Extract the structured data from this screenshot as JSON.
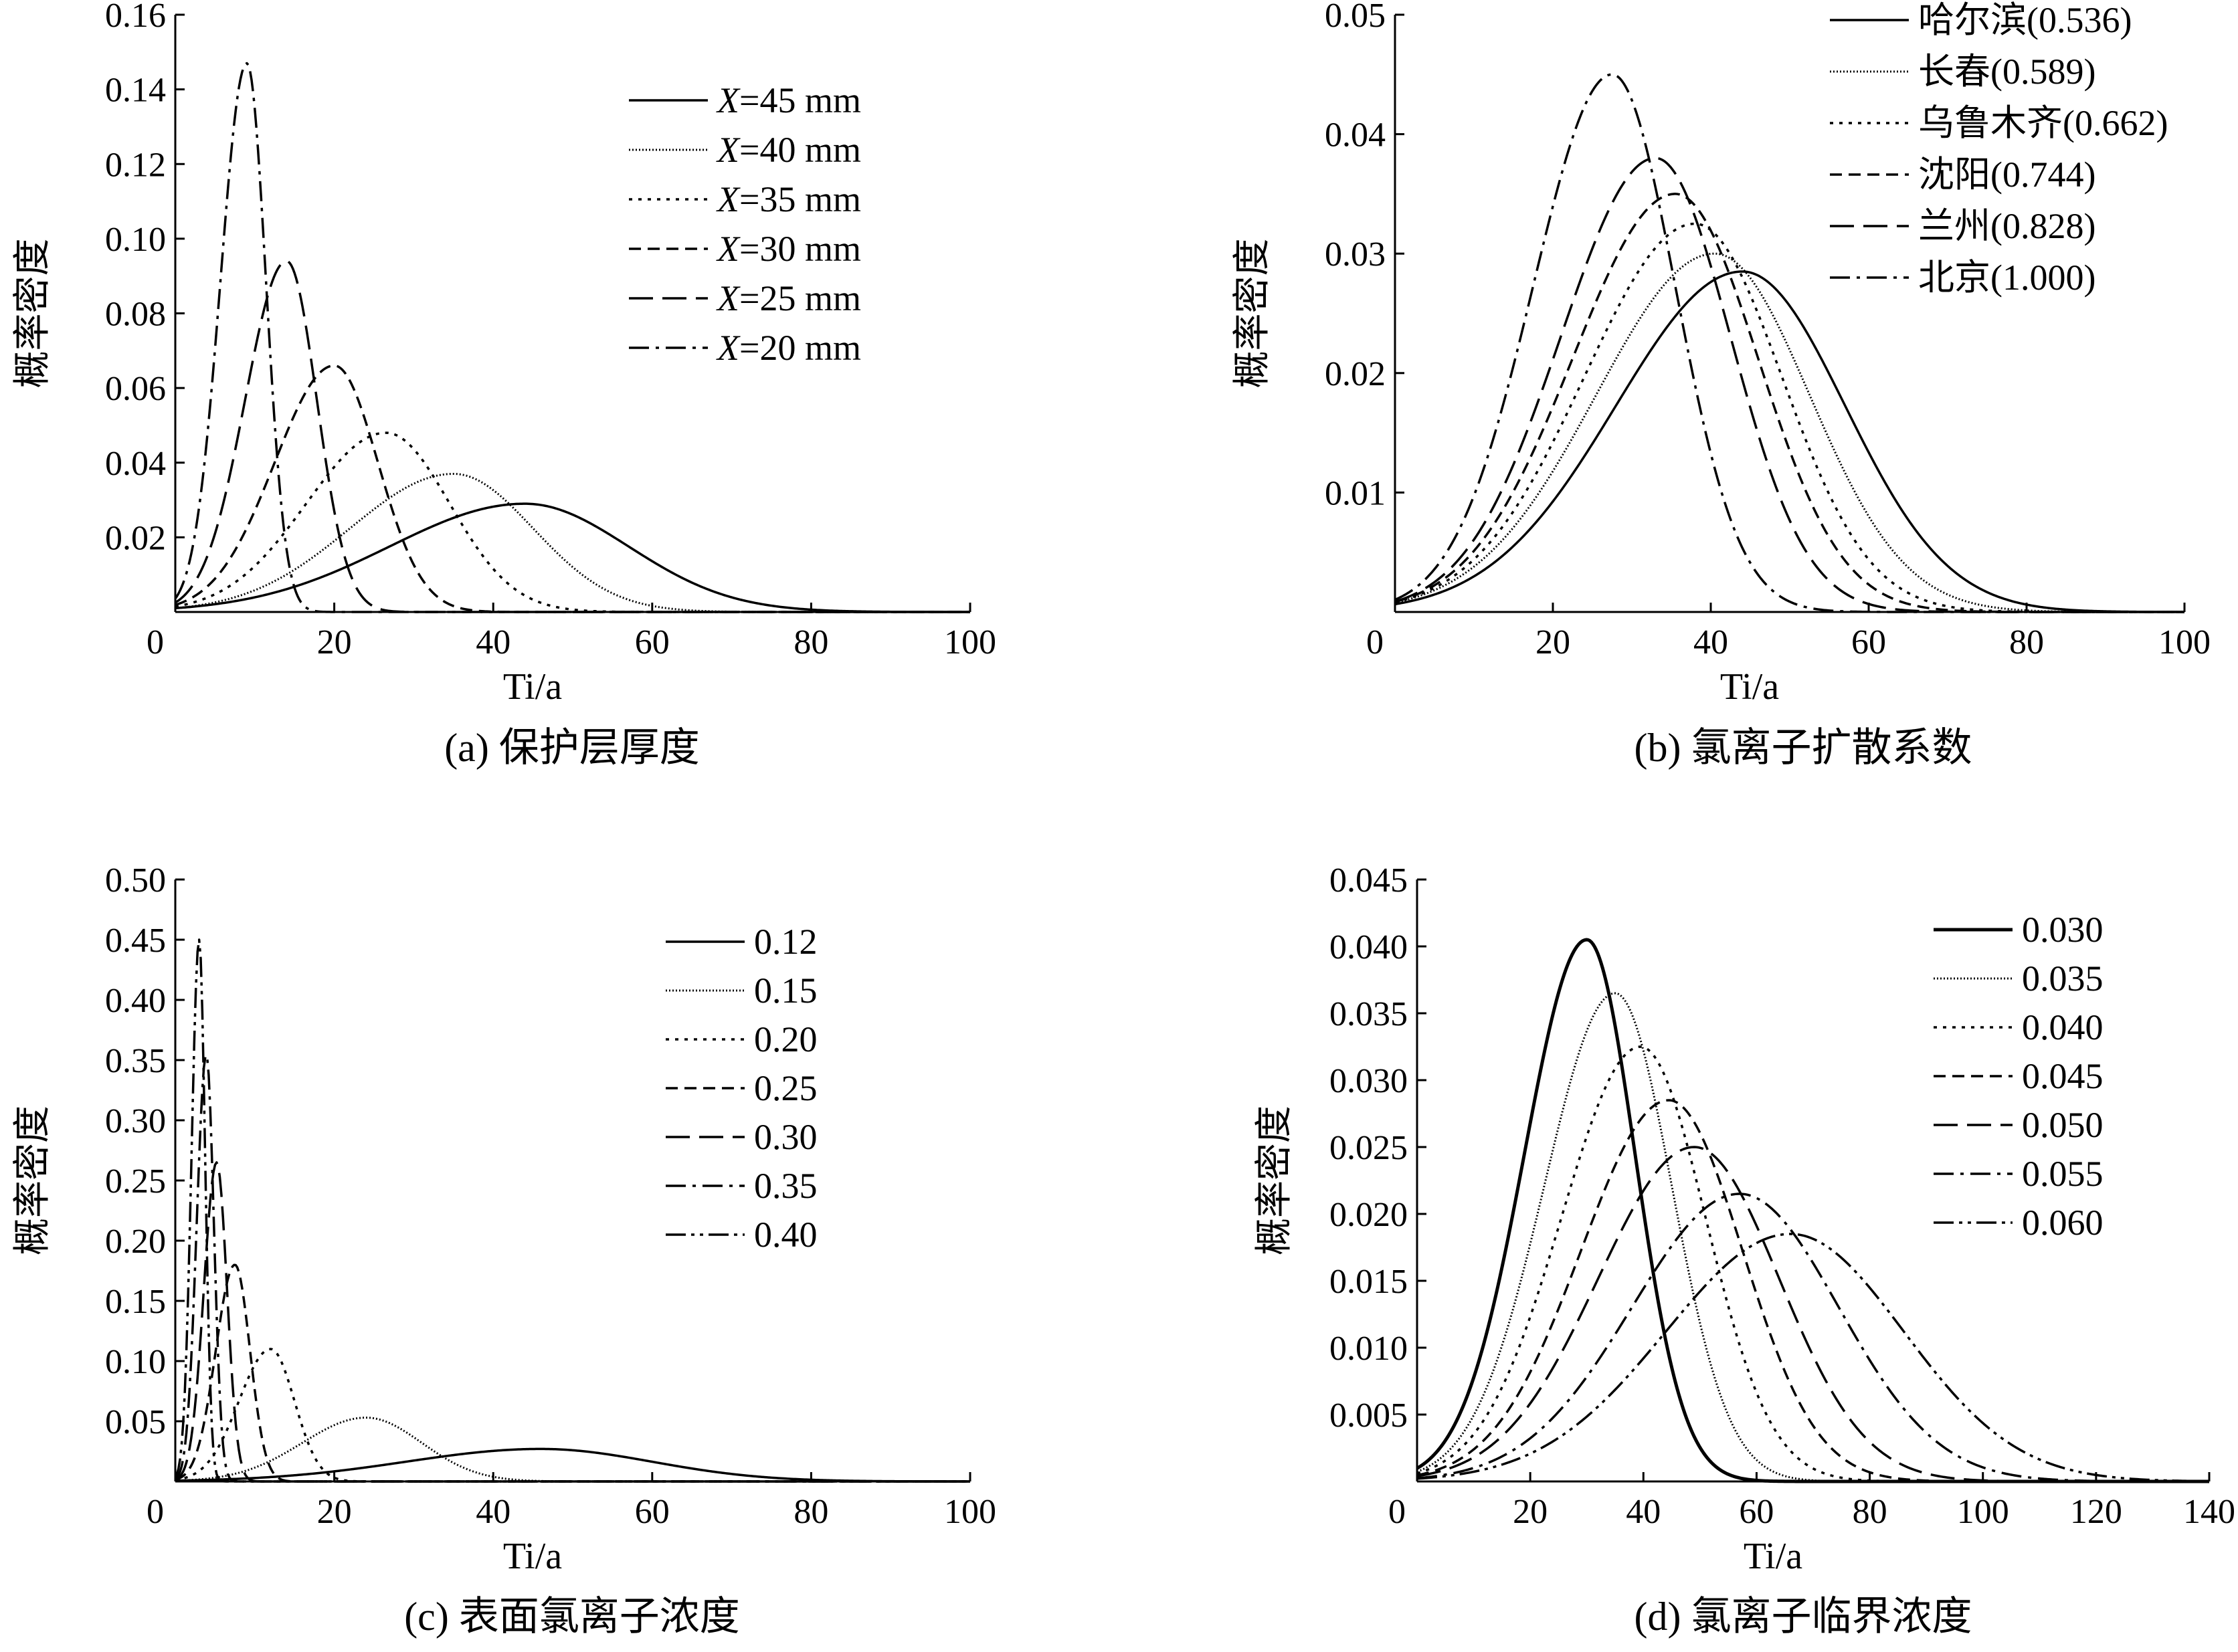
{
  "chart_data": [
    {
      "type": "line",
      "caption": "(a) 保护层厚度",
      "xlabel": "Ti/a",
      "ylabel": "概率密度",
      "xlim": [
        0,
        100
      ],
      "ylim": [
        0,
        0.16
      ],
      "xticks": [
        "0",
        "20",
        "40",
        "60",
        "80",
        "100"
      ],
      "yticks": [
        "0.02",
        "0.04",
        "0.06",
        "0.08",
        "0.10",
        "0.12",
        "0.14",
        "0.16"
      ],
      "legend_placement": "top-right",
      "series": [
        {
          "name": "X=45 mm",
          "label_italic": "X",
          "label_rest": "=45 mm",
          "style": "solid",
          "peak_x": 44,
          "peak_y": 0.029,
          "spread_left": 17,
          "spread_right": 13
        },
        {
          "name": "X=40 mm",
          "label_italic": "X",
          "label_rest": "=40 mm",
          "style": "dotted-fine",
          "peak_x": 35,
          "peak_y": 0.037,
          "spread_left": 13,
          "spread_right": 10
        },
        {
          "name": "X=35 mm",
          "label_italic": "X",
          "label_rest": "=35 mm",
          "style": "dotted",
          "peak_x": 26.5,
          "peak_y": 0.048,
          "spread_left": 10,
          "spread_right": 8
        },
        {
          "name": "X=30 mm",
          "label_italic": "X",
          "label_rest": "=30 mm",
          "style": "short-dash",
          "peak_x": 20,
          "peak_y": 0.066,
          "spread_left": 7.5,
          "spread_right": 5.5
        },
        {
          "name": "X=25 mm",
          "label_italic": "X",
          "label_rest": "=25 mm",
          "style": "long-dash",
          "peak_x": 14,
          "peak_y": 0.094,
          "spread_left": 5.2,
          "spread_right": 3.8
        },
        {
          "name": "X=20 mm",
          "label_italic": "X",
          "label_rest": "=20 mm",
          "style": "dash-dot",
          "peak_x": 9,
          "peak_y": 0.147,
          "spread_left": 3.3,
          "spread_right": 2.4
        }
      ]
    },
    {
      "type": "line",
      "caption": "(b) 氯离子扩散系数",
      "xlabel": "Ti/a",
      "ylabel": "概率密度",
      "xlim": [
        0,
        100
      ],
      "ylim": [
        0,
        0.05
      ],
      "xticks": [
        "0",
        "20",
        "40",
        "60",
        "80",
        "100"
      ],
      "yticks": [
        "0.01",
        "0.02",
        "0.03",
        "0.04",
        "0.05"
      ],
      "legend_placement": "top-right",
      "series": [
        {
          "name": "哈尔滨(0.536)",
          "style": "solid",
          "peak_x": 44,
          "peak_y": 0.0285,
          "spread_left": 16,
          "spread_right": 13
        },
        {
          "name": "长春(0.589)",
          "style": "dotted-fine",
          "peak_x": 40.5,
          "peak_y": 0.03,
          "spread_left": 15,
          "spread_right": 12
        },
        {
          "name": "乌鲁木齐(0.662)",
          "style": "dotted",
          "peak_x": 38,
          "peak_y": 0.0325,
          "spread_left": 14,
          "spread_right": 11
        },
        {
          "name": "沈阳(0.744)",
          "style": "short-dash",
          "peak_x": 35.5,
          "peak_y": 0.035,
          "spread_left": 13,
          "spread_right": 10.5
        },
        {
          "name": "兰州(0.828)",
          "style": "long-dash",
          "peak_x": 33,
          "peak_y": 0.038,
          "spread_left": 12,
          "spread_right": 9.5
        },
        {
          "name": "北京(1.000)",
          "style": "dash-dot",
          "peak_x": 27.5,
          "peak_y": 0.045,
          "spread_left": 10,
          "spread_right": 8
        }
      ]
    },
    {
      "type": "line",
      "caption": "(c) 表面氯离子浓度",
      "xlabel": "Ti/a",
      "ylabel": "概率密度",
      "xlim": [
        0,
        100
      ],
      "ylim": [
        0,
        0.5
      ],
      "xticks": [
        "0",
        "20",
        "40",
        "60",
        "80",
        "100"
      ],
      "yticks": [
        "0.05",
        "0.10",
        "0.15",
        "0.20",
        "0.25",
        "0.30",
        "0.35",
        "0.40",
        "0.45",
        "0.50"
      ],
      "legend_placement": "top-right",
      "series": [
        {
          "name": "0.12",
          "style": "solid",
          "peak_x": 46,
          "peak_y": 0.027,
          "spread_left": 17,
          "spread_right": 14
        },
        {
          "name": "0.15",
          "style": "dotted-fine",
          "peak_x": 24,
          "peak_y": 0.053,
          "spread_left": 8,
          "spread_right": 7
        },
        {
          "name": "0.20",
          "style": "dotted",
          "peak_x": 12,
          "peak_y": 0.11,
          "spread_left": 4,
          "spread_right": 3
        },
        {
          "name": "0.25",
          "style": "short-dash",
          "peak_x": 7.5,
          "peak_y": 0.18,
          "spread_left": 2.4,
          "spread_right": 1.9
        },
        {
          "name": "0.30",
          "style": "long-dash",
          "peak_x": 5.2,
          "peak_y": 0.265,
          "spread_left": 1.6,
          "spread_right": 1.3
        },
        {
          "name": "0.35",
          "style": "dash-dot",
          "peak_x": 3.9,
          "peak_y": 0.355,
          "spread_left": 1.2,
          "spread_right": 0.95
        },
        {
          "name": "0.40",
          "style": "dash-dot-dot",
          "peak_x": 3.0,
          "peak_y": 0.45,
          "spread_left": 0.95,
          "spread_right": 0.75
        }
      ]
    },
    {
      "type": "line",
      "caption": "(d) 氯离子临界浓度",
      "xlabel": "Ti/a",
      "ylabel": "概率密度",
      "xlim": [
        0,
        140
      ],
      "ylim": [
        0,
        0.045
      ],
      "xticks": [
        "0",
        "20",
        "40",
        "60",
        "80",
        "100",
        "120",
        "140"
      ],
      "yticks": [
        "0.005",
        "0.010",
        "0.015",
        "0.020",
        "0.025",
        "0.030",
        "0.035",
        "0.040",
        "0.045"
      ],
      "legend_placement": "top-right",
      "series": [
        {
          "name": "0.030",
          "style": "solid-bold",
          "peak_x": 30,
          "peak_y": 0.0405,
          "spread_left": 11,
          "spread_right": 8.5
        },
        {
          "name": "0.035",
          "style": "dotted-fine",
          "peak_x": 35,
          "peak_y": 0.0365,
          "spread_left": 12.5,
          "spread_right": 10
        },
        {
          "name": "0.040",
          "style": "dotted",
          "peak_x": 39.5,
          "peak_y": 0.0325,
          "spread_left": 14,
          "spread_right": 11.5
        },
        {
          "name": "0.045",
          "style": "short-dash",
          "peak_x": 44.5,
          "peak_y": 0.0285,
          "spread_left": 15.5,
          "spread_right": 13
        },
        {
          "name": "0.050",
          "style": "long-dash",
          "peak_x": 49,
          "peak_y": 0.025,
          "spread_left": 17,
          "spread_right": 15
        },
        {
          "name": "0.055",
          "style": "dash-dot",
          "peak_x": 57,
          "peak_y": 0.0215,
          "spread_left": 19,
          "spread_right": 17.5
        },
        {
          "name": "0.060",
          "style": "dash-dot-dot",
          "peak_x": 66,
          "peak_y": 0.0185,
          "spread_left": 22,
          "spread_right": 20
        }
      ]
    }
  ]
}
